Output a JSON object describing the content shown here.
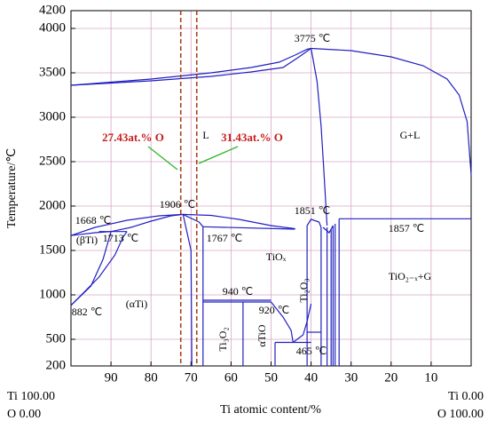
{
  "chart_data": {
    "type": "line",
    "x_label": "Ti atomic content/%",
    "y_label": "Temperature/℃",
    "xlim": [
      100,
      0
    ],
    "ylim": [
      200,
      4200
    ],
    "xticks": [
      90,
      80,
      70,
      60,
      50,
      40,
      30,
      20,
      10
    ],
    "yticks": [
      200,
      500,
      1000,
      1500,
      2000,
      2500,
      3000,
      3500,
      4000,
      4200
    ],
    "grid": true,
    "grid_color": "#d8a6c6",
    "line_color": "#2020c0",
    "marker_color": "#a8401c",
    "vlines": [
      72.57,
      68.57
    ],
    "lines": [
      {
        "x": [
          100,
          80,
          65,
          55,
          48,
          44,
          41,
          40
        ],
        "y": [
          3360,
          3430,
          3500,
          3560,
          3620,
          3700,
          3765,
          3775
        ]
      },
      {
        "x": [
          100,
          80,
          65,
          55,
          47,
          43,
          40
        ],
        "y": [
          3360,
          3410,
          3460,
          3510,
          3560,
          3680,
          3775
        ]
      },
      {
        "x": [
          40,
          30,
          20,
          12,
          6,
          3,
          1,
          0
        ],
        "y": [
          3775,
          3750,
          3680,
          3580,
          3430,
          3250,
          2950,
          2350
        ]
      },
      {
        "x": [
          40,
          38.5,
          37.5,
          36.8,
          36.3,
          36
        ],
        "y": [
          3775,
          3400,
          2900,
          2400,
          2000,
          1780
        ]
      },
      {
        "x": [
          100,
          94,
          86,
          78,
          72,
          65,
          58,
          50,
          44
        ],
        "y": [
          1668,
          1760,
          1840,
          1890,
          1906,
          1895,
          1850,
          1780,
          1745
        ]
      },
      {
        "x": [
          100,
          94,
          90,
          85,
          80,
          75,
          72
        ],
        "y": [
          1668,
          1700,
          1713,
          1760,
          1830,
          1890,
          1906
        ]
      },
      {
        "x": [
          72,
          70,
          69.8
        ],
        "y": [
          1906,
          1500,
          200
        ]
      },
      {
        "x": [
          72,
          68,
          67
        ],
        "y": [
          1906,
          1820,
          1767
        ]
      },
      {
        "x": [
          67,
          67
        ],
        "y": [
          1767,
          200
        ]
      },
      {
        "x": [
          67,
          44
        ],
        "y": [
          1767,
          1740
        ]
      },
      {
        "x": [
          100,
          95,
          92,
          90
        ],
        "y": [
          882,
          1100,
          1400,
          1713
        ]
      },
      {
        "x": [
          100,
          93,
          89,
          87,
          86
        ],
        "y": [
          882,
          1200,
          1450,
          1650,
          1713
        ]
      },
      {
        "x": [
          93,
          86
        ],
        "y": [
          1713,
          1713
        ]
      },
      {
        "x": [
          67,
          50
        ],
        "y": [
          940,
          940
        ]
      },
      {
        "x": [
          67,
          50
        ],
        "y": [
          920,
          920
        ]
      },
      {
        "x": [
          57,
          57
        ],
        "y": [
          920,
          200
        ]
      },
      {
        "x": [
          50,
          47,
          45,
          44.5
        ],
        "y": [
          920,
          750,
          600,
          465
        ]
      },
      {
        "x": [
          40,
          41,
          42,
          44.5
        ],
        "y": [
          900,
          700,
          550,
          465
        ]
      },
      {
        "x": [
          49,
          40
        ],
        "y": [
          465,
          465
        ]
      },
      {
        "x": [
          49,
          49
        ],
        "y": [
          465,
          200
        ]
      },
      {
        "x": [
          41,
          40,
          38,
          37.5
        ],
        "y": [
          1780,
          1851,
          1820,
          1760
        ]
      },
      {
        "x": [
          41,
          41
        ],
        "y": [
          1780,
          200
        ]
      },
      {
        "x": [
          37.5,
          37.5
        ],
        "y": [
          1760,
          200
        ]
      },
      {
        "x": [
          41,
          37.5
        ],
        "y": [
          580,
          580
        ]
      },
      {
        "x": [
          37,
          35.5,
          34.5
        ],
        "y": [
          1760,
          1700,
          1780
        ]
      },
      {
        "x": [
          36,
          36
        ],
        "y": [
          1760,
          200
        ]
      },
      {
        "x": [
          35,
          35
        ],
        "y": [
          1740,
          200
        ]
      },
      {
        "x": [
          34.5,
          34.5
        ],
        "y": [
          1780,
          200
        ]
      },
      {
        "x": [
          34,
          34
        ],
        "y": [
          1800,
          200
        ]
      },
      {
        "x": [
          33,
          33
        ],
        "y": [
          1857,
          200
        ]
      },
      {
        "x": [
          33,
          0
        ],
        "y": [
          1857,
          1857
        ]
      }
    ],
    "annotations": [
      "3775 ℃",
      "L",
      "G+L",
      "27.43at.% O",
      "31.43at.% O",
      "1906 ℃",
      "1851 ℃",
      "1668 ℃",
      "1857 ℃",
      "(βTi)",
      "1713 ℃",
      "1767 ℃",
      "TiOₓ",
      "TiO₂₋ₓ+G",
      "940 ℃",
      "920 ℃",
      "882 ℃",
      "(αTi)",
      "Ti₃O₂",
      "αTiO",
      "Ti₂O₃",
      "465 ℃"
    ],
    "left_ends": [
      "Ti 100.00",
      "O 0.00"
    ],
    "right_ends": [
      "Ti 0.00",
      "O 100.00"
    ]
  }
}
